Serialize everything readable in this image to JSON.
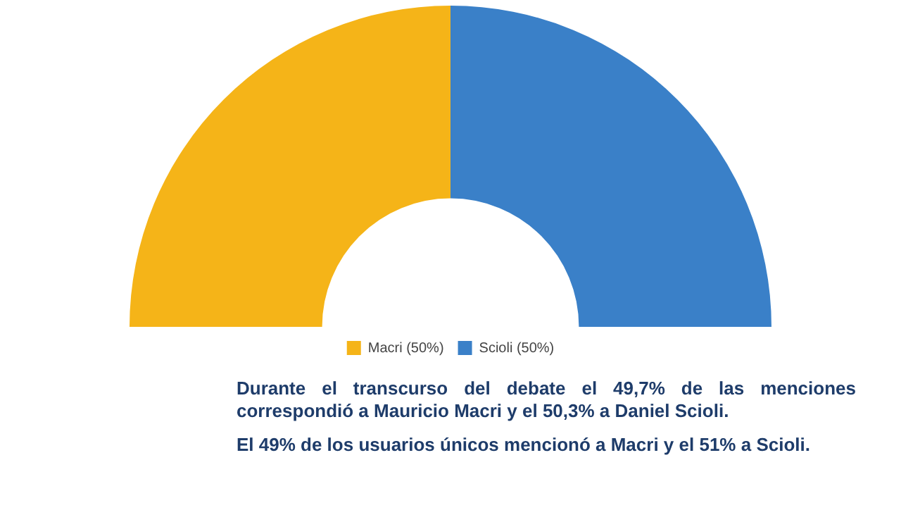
{
  "chart_data": {
    "type": "donut",
    "categories": [
      "Macri (50%)",
      "Scioli (50%)"
    ],
    "values": [
      50,
      50
    ],
    "colors": [
      "#f5b418",
      "#3a80c8"
    ],
    "legend": "bottom",
    "annotations": [
      "Durante el transcurso del debate el 49,7% de las menciones correspondió a Mauricio Macri y el 50,3% a Daniel Scioli.",
      "El 49% de los usuarios únicos mencionó a Macri y el 51% a Scioli."
    ]
  }
}
